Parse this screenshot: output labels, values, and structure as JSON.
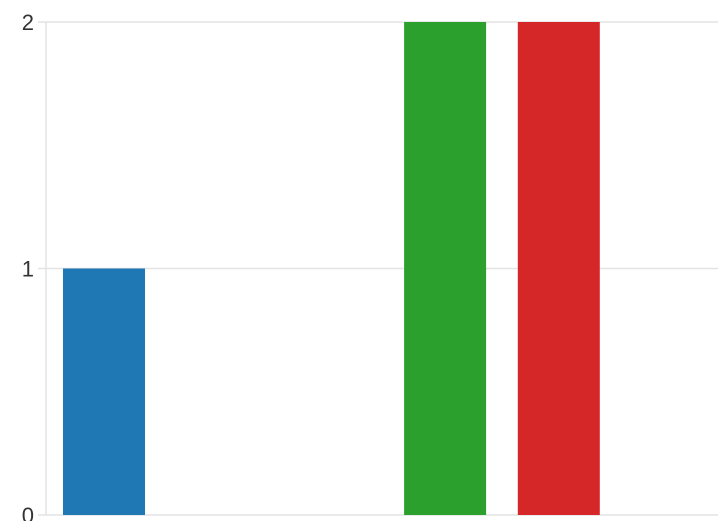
{
  "chart_data": {
    "type": "bar",
    "categories": [
      "",
      "",
      "",
      "",
      "",
      ""
    ],
    "values": [
      1,
      0,
      0,
      2,
      2,
      0
    ],
    "bar_colors": [
      "#1f77b4",
      "#ff7f0e",
      "#ff7f0e",
      "#2ca02c",
      "#d62728",
      "#9467bd"
    ],
    "title": "",
    "xlabel": "",
    "ylabel": "",
    "ylim": [
      0,
      2
    ],
    "y_ticks": [
      "0",
      "1",
      "2"
    ],
    "grid": true,
    "grid_axis": "y",
    "legend": "none"
  }
}
